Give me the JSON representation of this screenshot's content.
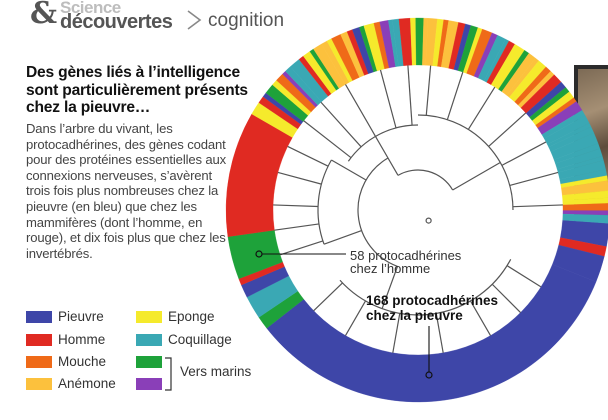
{
  "masthead": {
    "brand_ampersand": "&",
    "brand_line1": "Science",
    "brand_line2": "découvertes",
    "section": "cognition"
  },
  "headline": "Des gènes liés à l’intelligence sont particulièrement présents chez la pieuvre…",
  "body_text": "Dans l’arbre du vivant, les protocadhérines, des gènes codant pour des protéines essentielles aux connexions nerveuses, s’avèrent trois fois plus nombreuses chez la pieuvre (en bleu) que chez les mammifères (dont l’homme, en rouge), et dix fois plus que chez les invertébrés.",
  "annotations": {
    "human_line1": "58 protocadhérines",
    "human_line2": "chez l’homme",
    "octopus_line1": "168 protocadhérines",
    "octopus_line2": "chez la pieuvre"
  },
  "legend": [
    {
      "label": "Pieuvre",
      "color": "#3e46a8"
    },
    {
      "label": "Homme",
      "color": "#e02a22"
    },
    {
      "label": "Mouche",
      "color": "#ef6a18"
    },
    {
      "label": "Anémone",
      "color": "#fcc13d"
    },
    {
      "label": "Eponge",
      "color": "#f5ea2c"
    },
    {
      "label": "Coquillage",
      "color": "#3aa8b4"
    },
    {
      "label": "",
      "color": "#1ea23a"
    },
    {
      "label": "",
      "color": "#8a3fb8"
    }
  ],
  "legend_group_label": "Vers marins",
  "colors": {
    "pieuvre": "#3e46a8",
    "homme": "#e02a22",
    "mouche": "#ef6a18",
    "anemone": "#fcc13d",
    "eponge": "#f5ea2c",
    "coquillage": "#3aa8b4",
    "vers_marins_green": "#1ea23a",
    "vers_marins_purple": "#8a3fb8"
  }
}
